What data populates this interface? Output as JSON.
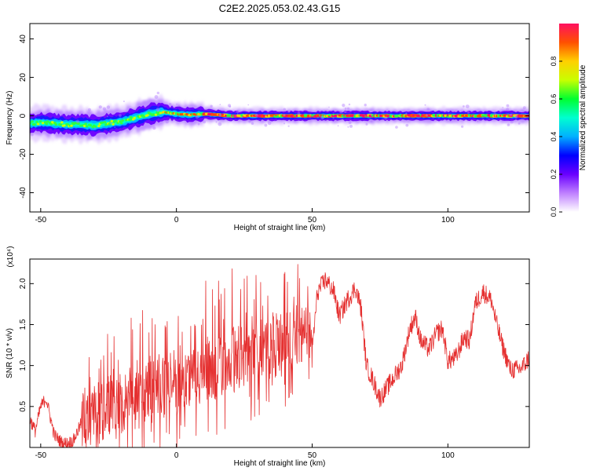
{
  "title": "C2E2.2025.053.02.43.G15",
  "chart_data": [
    {
      "type": "heatmap",
      "xlabel": "Height of straight line (km)",
      "ylabel": "Frequency (Hz)",
      "xlim": [
        -54,
        130
      ],
      "ylim": [
        -50,
        48
      ],
      "xticks": [
        -50,
        0,
        50,
        100
      ],
      "xtick_labels": [
        "-50",
        "0",
        "50",
        "100"
      ],
      "yticks": [
        -40,
        -20,
        0,
        20,
        40
      ],
      "ytick_labels": [
        "-40",
        "-20",
        "0",
        "20",
        "40"
      ],
      "grid": false,
      "colorbar": {
        "label": "Normalized spectral amplitude",
        "range": [
          0,
          1
        ],
        "ticks": [
          0.0,
          0.2,
          0.4,
          0.6,
          0.8
        ],
        "tick_labels": [
          "0.0",
          "0.2",
          "0.4",
          "0.6",
          "0.8"
        ],
        "colors": [
          "#ffffff",
          "#bf80ff",
          "#6a00ff",
          "#0000ff",
          "#00b0ff",
          "#00ffd0",
          "#00ff30",
          "#c8ff00",
          "#ffd000",
          "#ff5000",
          "#ff1060"
        ]
      },
      "ridge": {
        "x": [
          -54,
          -50,
          -45,
          -40,
          -35,
          -30,
          -25,
          -20,
          -15,
          -10,
          -5,
          0,
          5,
          10,
          15,
          20,
          30,
          40,
          60,
          80,
          100,
          130
        ],
        "frequency": [
          -4,
          -3.5,
          -4,
          -4.5,
          -4.5,
          -5,
          -4,
          -3,
          -1,
          1,
          2,
          1,
          0.5,
          1,
          0.5,
          0,
          0,
          0,
          0,
          0,
          0,
          0
        ]
      }
    },
    {
      "type": "line",
      "xlabel": "Height of straight line (km)",
      "ylabel": "SNR (10 * v/v)",
      "y_multiplier": "(x10⁴)",
      "xlim": [
        -54,
        130
      ],
      "ylim": [
        0,
        2.3
      ],
      "xticks": [
        -50,
        0,
        50,
        100
      ],
      "xtick_labels": [
        "-50",
        "0",
        "50",
        "100"
      ],
      "yticks": [
        0.5,
        1.0,
        1.5,
        2.0
      ],
      "ytick_labels": [
        "0.5",
        "1.0",
        "1.5",
        "2.0"
      ],
      "grid": false,
      "color": "#e53030",
      "envelope": {
        "x": [
          -54,
          -52,
          -50,
          -48,
          -45,
          -42,
          -40,
          -38,
          -35,
          -30,
          -25,
          -20,
          -15,
          -10,
          -5,
          0,
          5,
          10,
          15,
          20,
          25,
          30,
          35,
          40,
          45,
          48,
          50,
          52,
          55,
          58,
          60,
          63,
          66,
          68,
          70,
          72,
          75,
          78,
          80,
          83,
          86,
          88,
          90,
          93,
          96,
          98,
          100,
          103,
          106,
          108,
          110,
          113,
          116,
          118,
          120,
          123,
          126,
          128,
          130
        ],
        "y": [
          0.35,
          0.2,
          0.5,
          0.6,
          0.15,
          0.05,
          0.05,
          0.08,
          0.3,
          0.4,
          0.5,
          0.55,
          0.6,
          0.7,
          0.75,
          0.8,
          0.85,
          0.9,
          1.0,
          1.1,
          1.15,
          1.2,
          1.25,
          1.3,
          1.4,
          1.45,
          1.2,
          1.9,
          2.05,
          1.9,
          1.6,
          1.8,
          1.95,
          1.7,
          1.0,
          0.85,
          0.6,
          0.75,
          0.85,
          1.0,
          1.45,
          1.6,
          1.3,
          1.2,
          1.4,
          1.45,
          1.05,
          1.1,
          1.35,
          1.3,
          1.75,
          1.9,
          1.8,
          1.5,
          1.25,
          0.95,
          0.95,
          1.0,
          1.1
        ]
      }
    }
  ]
}
